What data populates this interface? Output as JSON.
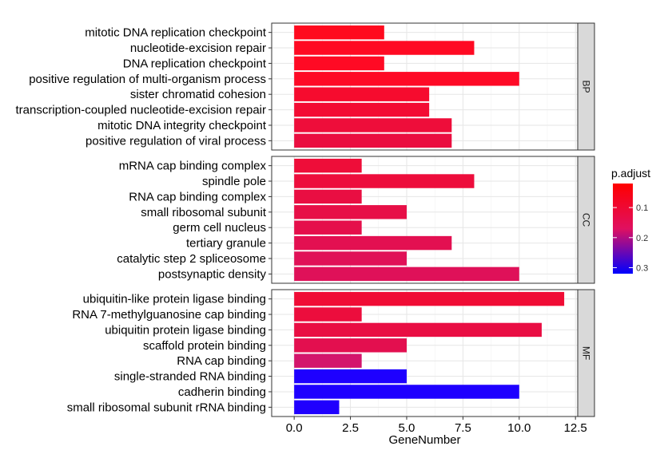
{
  "chart_data": {
    "type": "bar",
    "orientation": "horizontal",
    "xlabel": "GeneNumber",
    "xlim": [
      -1,
      12.6
    ],
    "xticks": [
      "0.0",
      "2.5",
      "5.0",
      "7.5",
      "10.0",
      "12.5"
    ],
    "xtick_values": [
      0,
      2.5,
      5,
      7.5,
      10,
      12.5
    ],
    "grid": true,
    "facets": [
      {
        "label": "BP",
        "bars": [
          {
            "term": "mitotic DNA replication checkpoint",
            "value": 4,
            "color": "#ff0a1e"
          },
          {
            "term": "nucleotide-excision repair",
            "value": 8,
            "color": "#ff0a23"
          },
          {
            "term": "DNA replication checkpoint",
            "value": 4,
            "color": "#ff0a24"
          },
          {
            "term": "positive regulation of multi-organism process",
            "value": 10,
            "color": "#fe0a26"
          },
          {
            "term": "sister chromatid cohesion",
            "value": 6,
            "color": "#f60b2e"
          },
          {
            "term": "transcription-coupled nucleotide-excision repair",
            "value": 6,
            "color": "#f30c33"
          },
          {
            "term": "mitotic DNA integrity checkpoint",
            "value": 7,
            "color": "#ee0d3a"
          },
          {
            "term": "positive regulation of viral process",
            "value": 7,
            "color": "#ea0e40"
          }
        ]
      },
      {
        "label": "CC",
        "bars": [
          {
            "term": "mRNA cap binding complex",
            "value": 3,
            "color": "#ee0d39"
          },
          {
            "term": "spindle pole",
            "value": 8,
            "color": "#ed0d3c"
          },
          {
            "term": "RNA cap binding complex",
            "value": 3,
            "color": "#e90e42"
          },
          {
            "term": "small ribosomal subunit",
            "value": 5,
            "color": "#e70f47"
          },
          {
            "term": "germ cell nucleus",
            "value": 3,
            "color": "#e50f4b"
          },
          {
            "term": "tertiary granule",
            "value": 7,
            "color": "#e31051"
          },
          {
            "term": "catalytic step 2 spliceosome",
            "value": 5,
            "color": "#e01157"
          },
          {
            "term": "postsynaptic density",
            "value": 10,
            "color": "#df1159"
          }
        ]
      },
      {
        "label": "MF",
        "bars": [
          {
            "term": "ubiquitin-like protein ligase binding",
            "value": 12,
            "color": "#f00c35"
          },
          {
            "term": "RNA 7-methylguanosine cap binding",
            "value": 3,
            "color": "#ec0d3d"
          },
          {
            "term": "ubiquitin protein ligase binding",
            "value": 11,
            "color": "#e90e43"
          },
          {
            "term": "scaffold protein binding",
            "value": 5,
            "color": "#e30f4f"
          },
          {
            "term": "RNA cap binding",
            "value": 3,
            "color": "#d3156c"
          },
          {
            "term": "single-stranded RNA binding",
            "value": 5,
            "color": "#1e00ff"
          },
          {
            "term": "cadherin binding",
            "value": 10,
            "color": "#1e00ff"
          },
          {
            "term": "small ribosomal subunit rRNA binding",
            "value": 2,
            "color": "#2000fe"
          }
        ]
      }
    ],
    "legend": {
      "title": "p.adjust",
      "position": "right",
      "ticks": [
        "0.1",
        "0.2",
        "0.3"
      ],
      "tick_values": [
        0.1,
        0.2,
        0.3
      ],
      "range": [
        0.02,
        0.32
      ],
      "color_low": "#ff0000",
      "color_high": "#0000ff"
    }
  }
}
